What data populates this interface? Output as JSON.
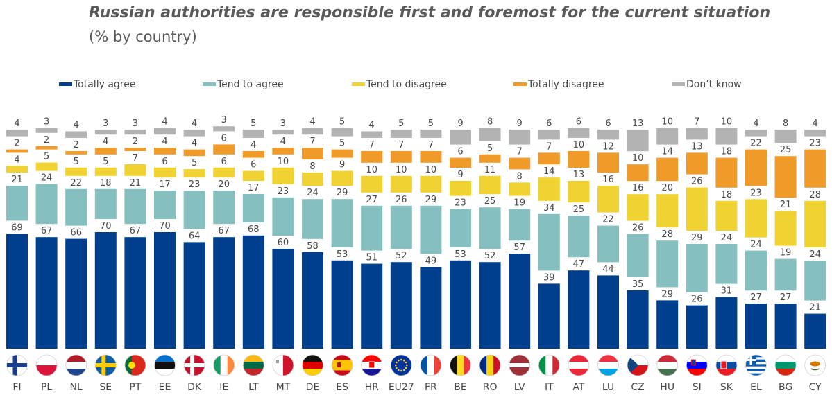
{
  "colors": {
    "totally_agree": "#003f8e",
    "tend_agree": "#85bfc0",
    "tend_disagree": "#f0d232",
    "totally_disagree": "#f09a2a",
    "dont_know": "#b3b3b3"
  },
  "chart_data": {
    "type": "bar",
    "stacked": true,
    "orientation": "vertical",
    "title": "Russian authorities are responsible first and foremost for the current situation",
    "subtitle": "(% by country)",
    "unit": "%",
    "categories": [
      "FI",
      "PL",
      "NL",
      "SE",
      "PT",
      "EE",
      "DK",
      "IE",
      "LT",
      "MT",
      "DE",
      "ES",
      "HR",
      "EU27",
      "FR",
      "BE",
      "RO",
      "LV",
      "IT",
      "AT",
      "LU",
      "CZ",
      "HU",
      "SI",
      "SK",
      "EL",
      "BG",
      "CY"
    ],
    "series": [
      {
        "name": "Totally agree",
        "key": "totally_agree",
        "values": [
          69,
          67,
          66,
          70,
          67,
          70,
          64,
          67,
          68,
          60,
          58,
          53,
          51,
          52,
          49,
          53,
          52,
          57,
          39,
          47,
          44,
          35,
          29,
          26,
          31,
          27,
          27,
          21
        ]
      },
      {
        "name": "Tend to agree",
        "key": "tend_agree",
        "values": [
          21,
          24,
          22,
          18,
          21,
          17,
          23,
          20,
          17,
          23,
          24,
          29,
          27,
          26,
          29,
          23,
          25,
          19,
          34,
          25,
          22,
          26,
          28,
          29,
          24,
          24,
          19,
          24
        ]
      },
      {
        "name": "Tend to disagree",
        "key": "tend_disagree",
        "values": [
          4,
          5,
          5,
          5,
          7,
          6,
          5,
          6,
          6,
          10,
          8,
          9,
          10,
          10,
          10,
          9,
          11,
          8,
          14,
          13,
          16,
          16,
          20,
          26,
          18,
          23,
          21,
          28
        ]
      },
      {
        "name": "Totally disagree",
        "key": "totally_disagree",
        "values": [
          2,
          2,
          2,
          4,
          2,
          4,
          4,
          6,
          4,
          4,
          7,
          5,
          7,
          7,
          7,
          6,
          5,
          7,
          7,
          10,
          12,
          10,
          14,
          13,
          18,
          22,
          25,
          23
        ]
      },
      {
        "name": "Don’t know",
        "key": "dont_know",
        "values": [
          4,
          3,
          4,
          3,
          3,
          4,
          4,
          3,
          5,
          3,
          4,
          5,
          4,
          5,
          5,
          9,
          8,
          9,
          6,
          6,
          6,
          13,
          10,
          7,
          10,
          4,
          8,
          4
        ]
      }
    ],
    "legend_position": "top",
    "flags": [
      "FI",
      "PL",
      "NL",
      "SE",
      "PT",
      "EE",
      "DK",
      "IE",
      "LT",
      "MT",
      "DE",
      "ES",
      "HR",
      "EU27",
      "FR",
      "BE",
      "RO",
      "LV",
      "IT",
      "AT",
      "LU",
      "CZ",
      "HU",
      "SI",
      "SK",
      "EL",
      "BG",
      "CY"
    ]
  }
}
